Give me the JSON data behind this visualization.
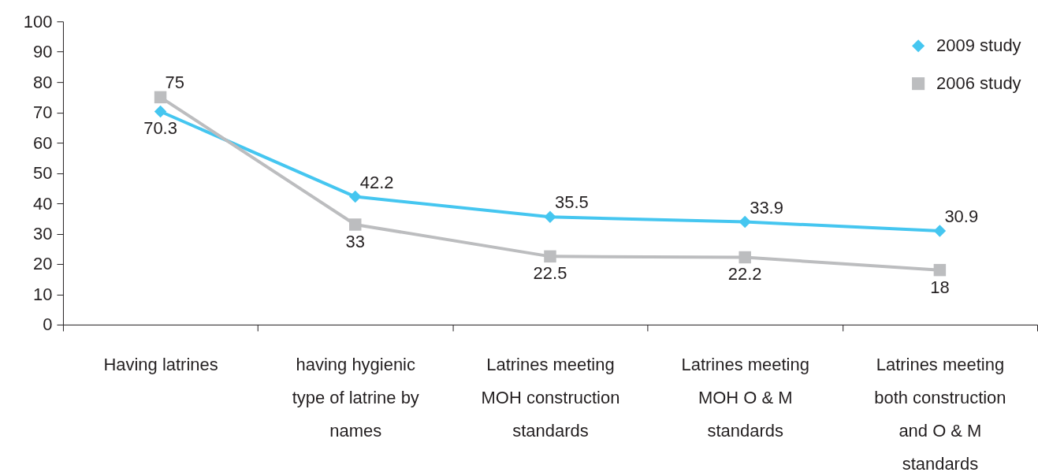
{
  "chart_data": {
    "type": "line",
    "categories": [
      "Having latrines",
      "having hygienic type of latrine by names",
      "Latrines meeting MOH construction standards",
      "Latrines meeting MOH O & M standards",
      "Latrines meeting both construction and O & M standards"
    ],
    "series": [
      {
        "name": "2009 study",
        "color": "#45c6f0",
        "marker": "diamond",
        "values": [
          70.3,
          42.2,
          35.5,
          33.9,
          30.9
        ]
      },
      {
        "name": "2006 study",
        "color": "#bcbdbf",
        "marker": "square",
        "values": [
          75,
          33,
          22.5,
          22.2,
          18
        ]
      }
    ],
    "ylim": [
      0,
      100
    ],
    "yticks": [
      0,
      10,
      20,
      30,
      40,
      50,
      60,
      70,
      80,
      90,
      100
    ],
    "data_labels": true,
    "legend": "top right"
  }
}
